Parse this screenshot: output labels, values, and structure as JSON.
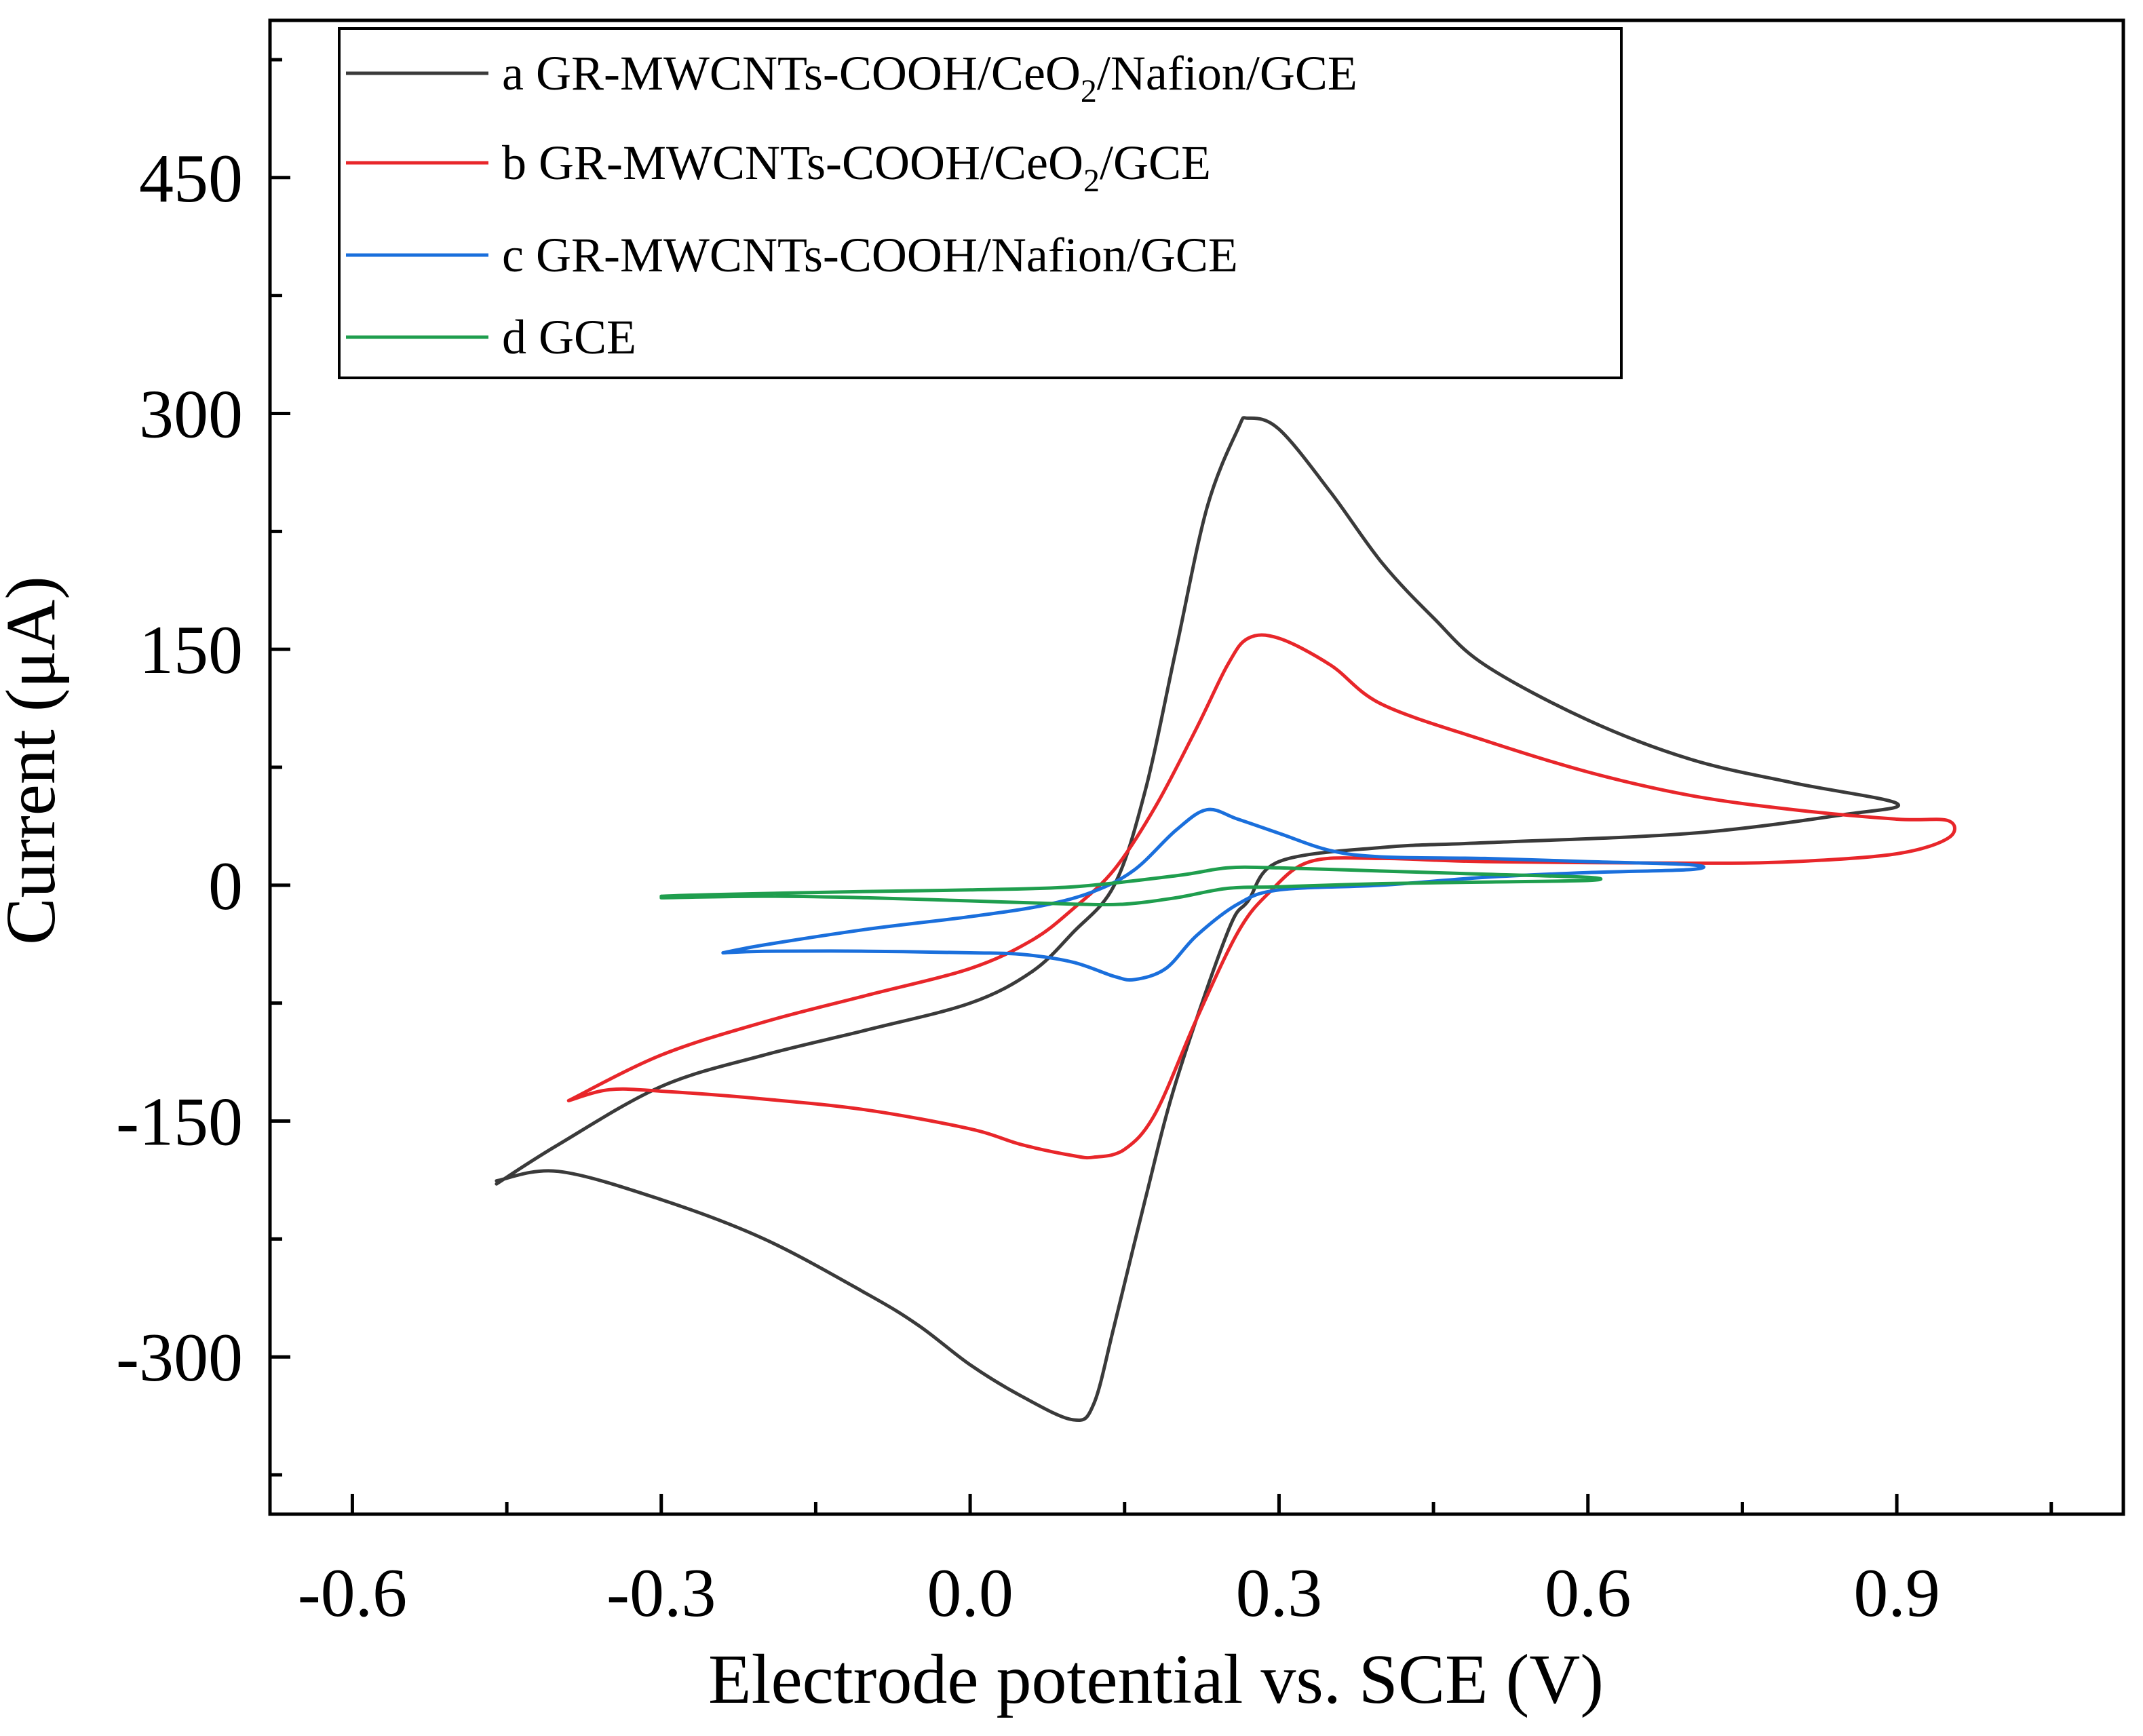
{
  "chart_data": {
    "type": "line",
    "title": "",
    "xlabel": "Electrode potential vs. SCE (V)",
    "ylabel": "Current (μA)",
    "xlim": [
      -0.68,
      1.12
    ],
    "ylim": [
      -400,
      550
    ],
    "xticks": [
      {
        "value": -0.6,
        "label": "-0.6"
      },
      {
        "value": -0.3,
        "label": "-0.3"
      },
      {
        "value": 0.0,
        "label": "0.0"
      },
      {
        "value": 0.3,
        "label": "0.3"
      },
      {
        "value": 0.6,
        "label": "0.6"
      },
      {
        "value": 0.9,
        "label": "0.9"
      }
    ],
    "yticks": [
      {
        "value": -300,
        "label": "-300"
      },
      {
        "value": -150,
        "label": "-150"
      },
      {
        "value": 0,
        "label": "0"
      },
      {
        "value": 150,
        "label": "150"
      },
      {
        "value": 300,
        "label": "300"
      },
      {
        "value": 450,
        "label": "450"
      }
    ],
    "grid": false,
    "legend_position": "top-left",
    "series": [
      {
        "key": "a",
        "name": "a GR-MWCNTs-COOH/CeO2/Nafion/GCE",
        "legend": {
          "pre": "a GR-MWCNTs-COOH/CeO",
          "sub": "2",
          "post": "/Nafion/GCE"
        },
        "color": "#3a3a3a",
        "points": [
          [
            -0.46,
            -190
          ],
          [
            -0.4,
            -165
          ],
          [
            -0.3,
            -128
          ],
          [
            -0.2,
            -108
          ],
          [
            -0.1,
            -92
          ],
          [
            0.0,
            -75
          ],
          [
            0.06,
            -55
          ],
          [
            0.1,
            -30
          ],
          [
            0.14,
            0
          ],
          [
            0.17,
            60
          ],
          [
            0.2,
            150
          ],
          [
            0.23,
            240
          ],
          [
            0.26,
            290
          ],
          [
            0.27,
            297
          ],
          [
            0.3,
            290
          ],
          [
            0.35,
            250
          ],
          [
            0.4,
            205
          ],
          [
            0.45,
            170
          ],
          [
            0.5,
            140
          ],
          [
            0.6,
            105
          ],
          [
            0.7,
            80
          ],
          [
            0.8,
            65
          ],
          [
            0.9,
            52
          ],
          [
            0.85,
            45
          ],
          [
            0.7,
            33
          ],
          [
            0.5,
            27
          ],
          [
            0.4,
            24
          ],
          [
            0.3,
            15
          ],
          [
            0.27,
            -10
          ],
          [
            0.25,
            -30
          ],
          [
            0.2,
            -125
          ],
          [
            0.17,
            -200
          ],
          [
            0.14,
            -280
          ],
          [
            0.12,
            -330
          ],
          [
            0.1,
            -340
          ],
          [
            0.05,
            -325
          ],
          [
            0.0,
            -305
          ],
          [
            -0.05,
            -280
          ],
          [
            -0.1,
            -260
          ],
          [
            -0.2,
            -225
          ],
          [
            -0.3,
            -200
          ],
          [
            -0.4,
            -182
          ],
          [
            -0.46,
            -188
          ]
        ]
      },
      {
        "key": "b",
        "name": "b GR-MWCNTs-COOH/CeO2/GCE",
        "legend": {
          "pre": "b GR-MWCNTs-COOH/CeO",
          "sub": "2",
          "post": "/GCE"
        },
        "color": "#e8262a",
        "points": [
          [
            -0.39,
            -137
          ],
          [
            -0.3,
            -108
          ],
          [
            -0.2,
            -87
          ],
          [
            -0.1,
            -70
          ],
          [
            0.0,
            -53
          ],
          [
            0.06,
            -35
          ],
          [
            0.1,
            -15
          ],
          [
            0.14,
            10
          ],
          [
            0.18,
            50
          ],
          [
            0.22,
            100
          ],
          [
            0.25,
            140
          ],
          [
            0.27,
            157
          ],
          [
            0.3,
            157
          ],
          [
            0.35,
            140
          ],
          [
            0.4,
            115
          ],
          [
            0.5,
            92
          ],
          [
            0.6,
            72
          ],
          [
            0.7,
            57
          ],
          [
            0.8,
            48
          ],
          [
            0.9,
            42
          ],
          [
            0.95,
            41
          ],
          [
            0.95,
            30
          ],
          [
            0.9,
            20
          ],
          [
            0.8,
            15
          ],
          [
            0.7,
            14
          ],
          [
            0.5,
            15
          ],
          [
            0.4,
            17
          ],
          [
            0.33,
            15
          ],
          [
            0.29,
            -5
          ],
          [
            0.26,
            -30
          ],
          [
            0.22,
            -85
          ],
          [
            0.18,
            -145
          ],
          [
            0.15,
            -168
          ],
          [
            0.12,
            -173
          ],
          [
            0.1,
            -172
          ],
          [
            0.05,
            -165
          ],
          [
            0.0,
            -155
          ],
          [
            -0.1,
            -143
          ],
          [
            -0.2,
            -136
          ],
          [
            -0.3,
            -131
          ],
          [
            -0.35,
            -130
          ],
          [
            -0.39,
            -137
          ]
        ]
      },
      {
        "key": "c",
        "name": "c GR-MWCNTs-COOH/Nafion/GCE",
        "legend": {
          "pre": "c GR-MWCNTs-COOH/Nafion/GCE",
          "sub": "",
          "post": ""
        },
        "color": "#1a6fdc",
        "points": [
          [
            -0.24,
            -43
          ],
          [
            -0.2,
            -38
          ],
          [
            -0.1,
            -28
          ],
          [
            0.0,
            -20
          ],
          [
            0.07,
            -13
          ],
          [
            0.12,
            -4
          ],
          [
            0.16,
            10
          ],
          [
            0.2,
            35
          ],
          [
            0.23,
            48
          ],
          [
            0.26,
            42
          ],
          [
            0.3,
            33
          ],
          [
            0.35,
            22
          ],
          [
            0.4,
            18
          ],
          [
            0.5,
            17
          ],
          [
            0.6,
            15
          ],
          [
            0.7,
            13
          ],
          [
            0.7,
            10
          ],
          [
            0.6,
            8
          ],
          [
            0.5,
            5
          ],
          [
            0.4,
            0
          ],
          [
            0.3,
            -3
          ],
          [
            0.26,
            -12
          ],
          [
            0.22,
            -32
          ],
          [
            0.19,
            -53
          ],
          [
            0.16,
            -60
          ],
          [
            0.14,
            -58
          ],
          [
            0.1,
            -49
          ],
          [
            0.05,
            -44
          ],
          [
            0.0,
            -43
          ],
          [
            -0.1,
            -42
          ],
          [
            -0.2,
            -42
          ],
          [
            -0.24,
            -43
          ]
        ]
      },
      {
        "key": "d",
        "name": "d GCE",
        "legend": {
          "pre": "d GCE",
          "sub": "",
          "post": ""
        },
        "color": "#1f9e4e",
        "points": [
          [
            -0.3,
            -7
          ],
          [
            -0.25,
            -6
          ],
          [
            -0.1,
            -4
          ],
          [
            0.0,
            -3
          ],
          [
            0.1,
            -1
          ],
          [
            0.2,
            6
          ],
          [
            0.25,
            11
          ],
          [
            0.3,
            11
          ],
          [
            0.4,
            9
          ],
          [
            0.5,
            7
          ],
          [
            0.6,
            5
          ],
          [
            0.6,
            3
          ],
          [
            0.5,
            2
          ],
          [
            0.4,
            1
          ],
          [
            0.3,
            -1
          ],
          [
            0.25,
            -2
          ],
          [
            0.2,
            -8
          ],
          [
            0.15,
            -12
          ],
          [
            0.1,
            -12
          ],
          [
            0.0,
            -10
          ],
          [
            -0.1,
            -8
          ],
          [
            -0.2,
            -7
          ],
          [
            -0.3,
            -8
          ]
        ]
      }
    ]
  }
}
